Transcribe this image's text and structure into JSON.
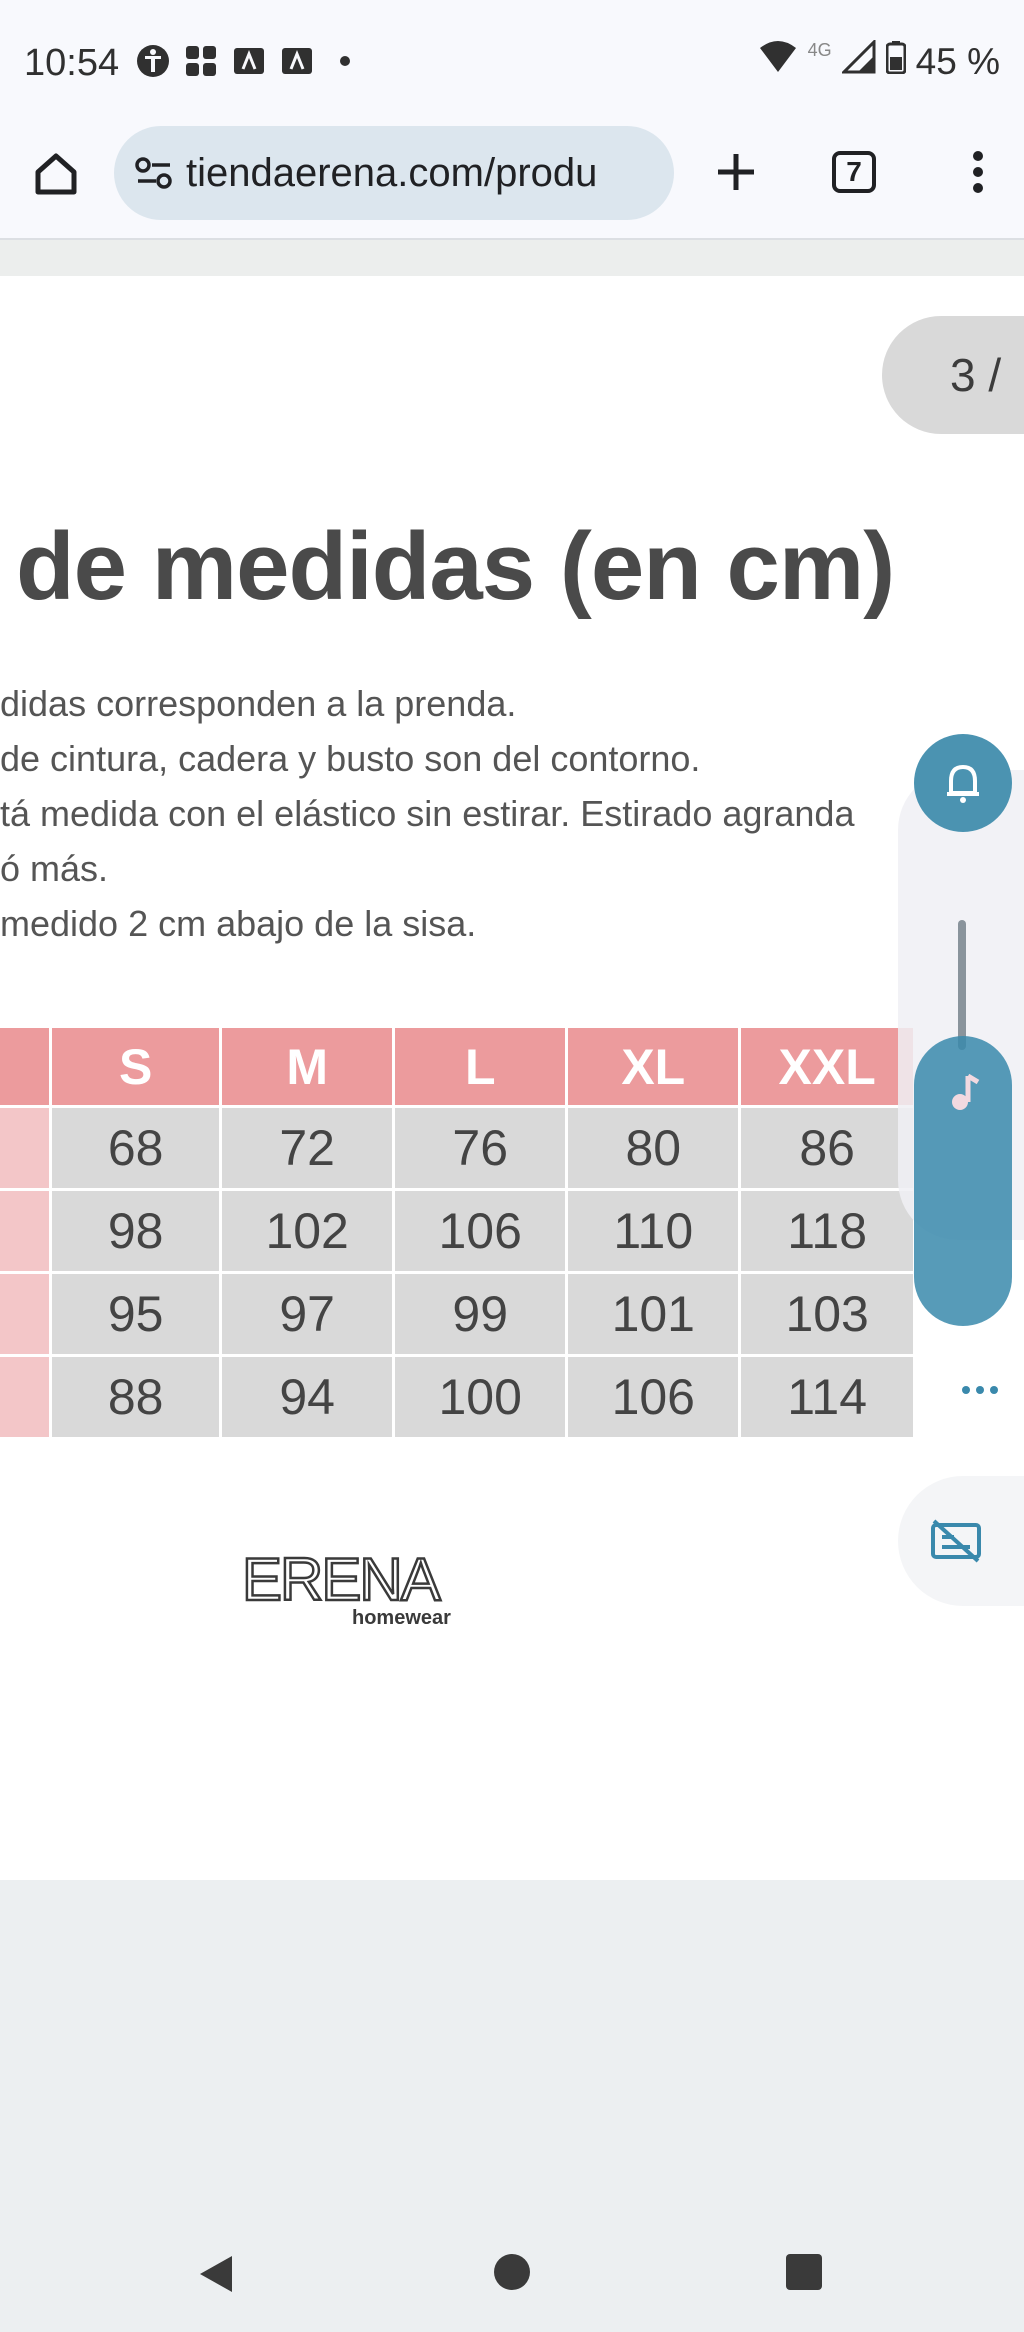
{
  "status_bar": {
    "time": "10:54",
    "network": "4G",
    "battery": "45 %",
    "icons": [
      "accessibility-icon",
      "grid-app-icon",
      "notification-a-icon",
      "notification-a-icon",
      "dot-icon",
      "wifi-icon",
      "signal-icon",
      "battery-icon"
    ]
  },
  "browser": {
    "url": "tiendaerena.com/produ",
    "tab_count": "7"
  },
  "page": {
    "indicator": "3 /",
    "heading": "de medidas (en cm)",
    "notes": [
      "didas corresponden a la prenda.",
      "de cintura, cadera y busto son del contorno.",
      "tá medida con el elástico sin estirar. Estirado agranda",
      "ó más.",
      "medido 2 cm abajo de la sisa."
    ],
    "table": {
      "headers": [
        "",
        "S",
        "M",
        "L",
        "XL",
        "XXL"
      ],
      "rows": [
        [
          "",
          "68",
          "72",
          "76",
          "80",
          "86"
        ],
        [
          "",
          "98",
          "102",
          "106",
          "110",
          "118"
        ],
        [
          "",
          "95",
          "97",
          "99",
          "101",
          "103"
        ],
        [
          "",
          "88",
          "94",
          "100",
          "106",
          "114"
        ]
      ]
    },
    "logo": {
      "brand": "ERENA",
      "tagline": "homewear"
    }
  },
  "colors": {
    "table_header": "#ec9b9d",
    "table_cell": "#d9d9d9",
    "accent": "#4b93b1"
  }
}
